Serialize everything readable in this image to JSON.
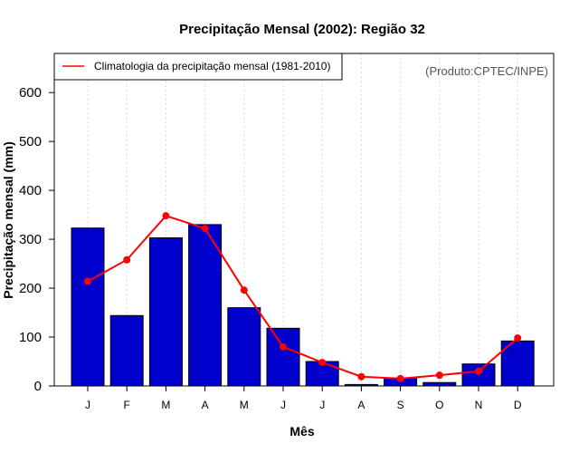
{
  "chart_data": {
    "type": "bar",
    "title": "Precipitação Mensal (2002): Região 32",
    "xlabel": "Mês",
    "ylabel": "Precipitação mensal (mm)",
    "ylim": [
      0,
      680
    ],
    "yticks": [
      0,
      100,
      200,
      300,
      400,
      500,
      600
    ],
    "categories": [
      "J",
      "F",
      "M",
      "A",
      "M",
      "J",
      "J",
      "A",
      "S",
      "O",
      "N",
      "D"
    ],
    "series": [
      {
        "name": "Precipitação mensal 2002",
        "type": "bar",
        "color": "#0000cc",
        "values": [
          323,
          144,
          303,
          330,
          160,
          118,
          50,
          3,
          16,
          7,
          45,
          92
        ]
      },
      {
        "name": "Climatologia da precipitação mensal (1981-2010)",
        "type": "line",
        "color": "#ff0000",
        "values": [
          214,
          258,
          348,
          322,
          196,
          80,
          48,
          19,
          15,
          22,
          30,
          98
        ]
      }
    ],
    "legend": {
      "label": "Climatologia da precipitação mensal (1981-2010)",
      "position": "top-left"
    },
    "credit": "(Produto:CPTEC/INPE)",
    "grid": true
  }
}
